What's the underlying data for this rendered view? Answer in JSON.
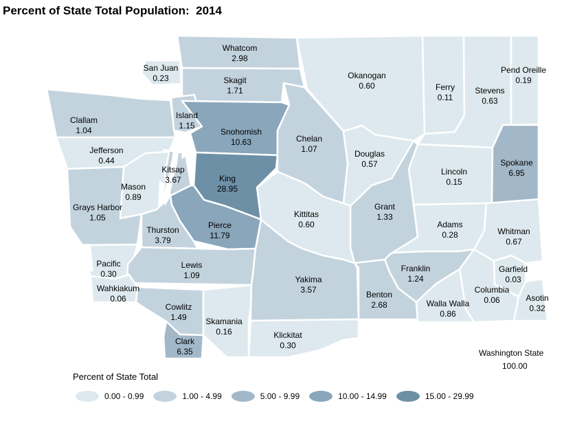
{
  "title": "Percent of State Total Population:  2014",
  "colors": {
    "c0": "#dde9ee",
    "c1": "#c3d3de",
    "c2": "#a2b8c9",
    "c3": "#8aa6bb",
    "c4": "#6e90a7"
  },
  "counties": [
    {
      "name": "Whatcom",
      "value": "2.98",
      "cls": "c1"
    },
    {
      "name": "San Juan",
      "value": "0.23",
      "cls": "c0"
    },
    {
      "name": "Skagit",
      "value": "1.71",
      "cls": "c1"
    },
    {
      "name": "Okanogan",
      "value": "0.60",
      "cls": "c0"
    },
    {
      "name": "Ferry",
      "value": "0.11",
      "cls": "c0"
    },
    {
      "name": "Stevens",
      "value": "0.63",
      "cls": "c0"
    },
    {
      "name": "Pend Oreille",
      "value": "0.19",
      "cls": "c0"
    },
    {
      "name": "Clallam",
      "value": "1.04",
      "cls": "c1"
    },
    {
      "name": "Island",
      "value": "1.15",
      "cls": "c1"
    },
    {
      "name": "Snohomish",
      "value": "10.63",
      "cls": "c3"
    },
    {
      "name": "Chelan",
      "value": "1.07",
      "cls": "c1"
    },
    {
      "name": "Douglas",
      "value": "0.57",
      "cls": "c0"
    },
    {
      "name": "Jefferson",
      "value": "0.44",
      "cls": "c0"
    },
    {
      "name": "Kitsap",
      "value": "3.67",
      "cls": "c1"
    },
    {
      "name": "King",
      "value": "28.95",
      "cls": "c4"
    },
    {
      "name": "Lincoln",
      "value": "0.15",
      "cls": "c0"
    },
    {
      "name": "Spokane",
      "value": "6.95",
      "cls": "c2"
    },
    {
      "name": "Mason",
      "value": "0.89",
      "cls": "c0"
    },
    {
      "name": "Grays Harbor",
      "value": "1.05",
      "cls": "c1"
    },
    {
      "name": "Grant",
      "value": "1.33",
      "cls": "c1"
    },
    {
      "name": "Kittitas",
      "value": "0.60",
      "cls": "c0"
    },
    {
      "name": "Pierce",
      "value": "11.79",
      "cls": "c3"
    },
    {
      "name": "Thurston",
      "value": "3.79",
      "cls": "c1"
    },
    {
      "name": "Adams",
      "value": "0.28",
      "cls": "c0"
    },
    {
      "name": "Whitman",
      "value": "0.67",
      "cls": "c0"
    },
    {
      "name": "Pacific",
      "value": "0.30",
      "cls": "c0"
    },
    {
      "name": "Lewis",
      "value": "1.09",
      "cls": "c1"
    },
    {
      "name": "Franklin",
      "value": "1.24",
      "cls": "c1"
    },
    {
      "name": "Garfield",
      "value": "0.03",
      "cls": "c0"
    },
    {
      "name": "Wahkiakum",
      "value": "0.06",
      "cls": "c0"
    },
    {
      "name": "Yakima",
      "value": "3.57",
      "cls": "c1"
    },
    {
      "name": "Benton",
      "value": "2.68",
      "cls": "c1"
    },
    {
      "name": "Columbia",
      "value": "0.06",
      "cls": "c0"
    },
    {
      "name": "Asotin",
      "value": "0.32",
      "cls": "c0"
    },
    {
      "name": "Cowlitz",
      "value": "1.49",
      "cls": "c1"
    },
    {
      "name": "Skamania",
      "value": "0.16",
      "cls": "c0"
    },
    {
      "name": "Walla Walla",
      "value": "0.86",
      "cls": "c0"
    },
    {
      "name": "Clark",
      "value": "6.35",
      "cls": "c2"
    },
    {
      "name": "Klickitat",
      "value": "0.30",
      "cls": "c0"
    }
  ],
  "state": {
    "name": "Washington State",
    "value": "100.00"
  },
  "legend": {
    "title": "Percent of State Total",
    "items": [
      {
        "label": "0.00 - 0.99",
        "cls": "c0"
      },
      {
        "label": "1.00 - 4.99",
        "cls": "c1"
      },
      {
        "label": "5.00 - 9.99",
        "cls": "c2"
      },
      {
        "label": "10.00 - 14.99",
        "cls": "c3"
      },
      {
        "label": "15.00 - 29.99",
        "cls": "c4"
      }
    ]
  }
}
